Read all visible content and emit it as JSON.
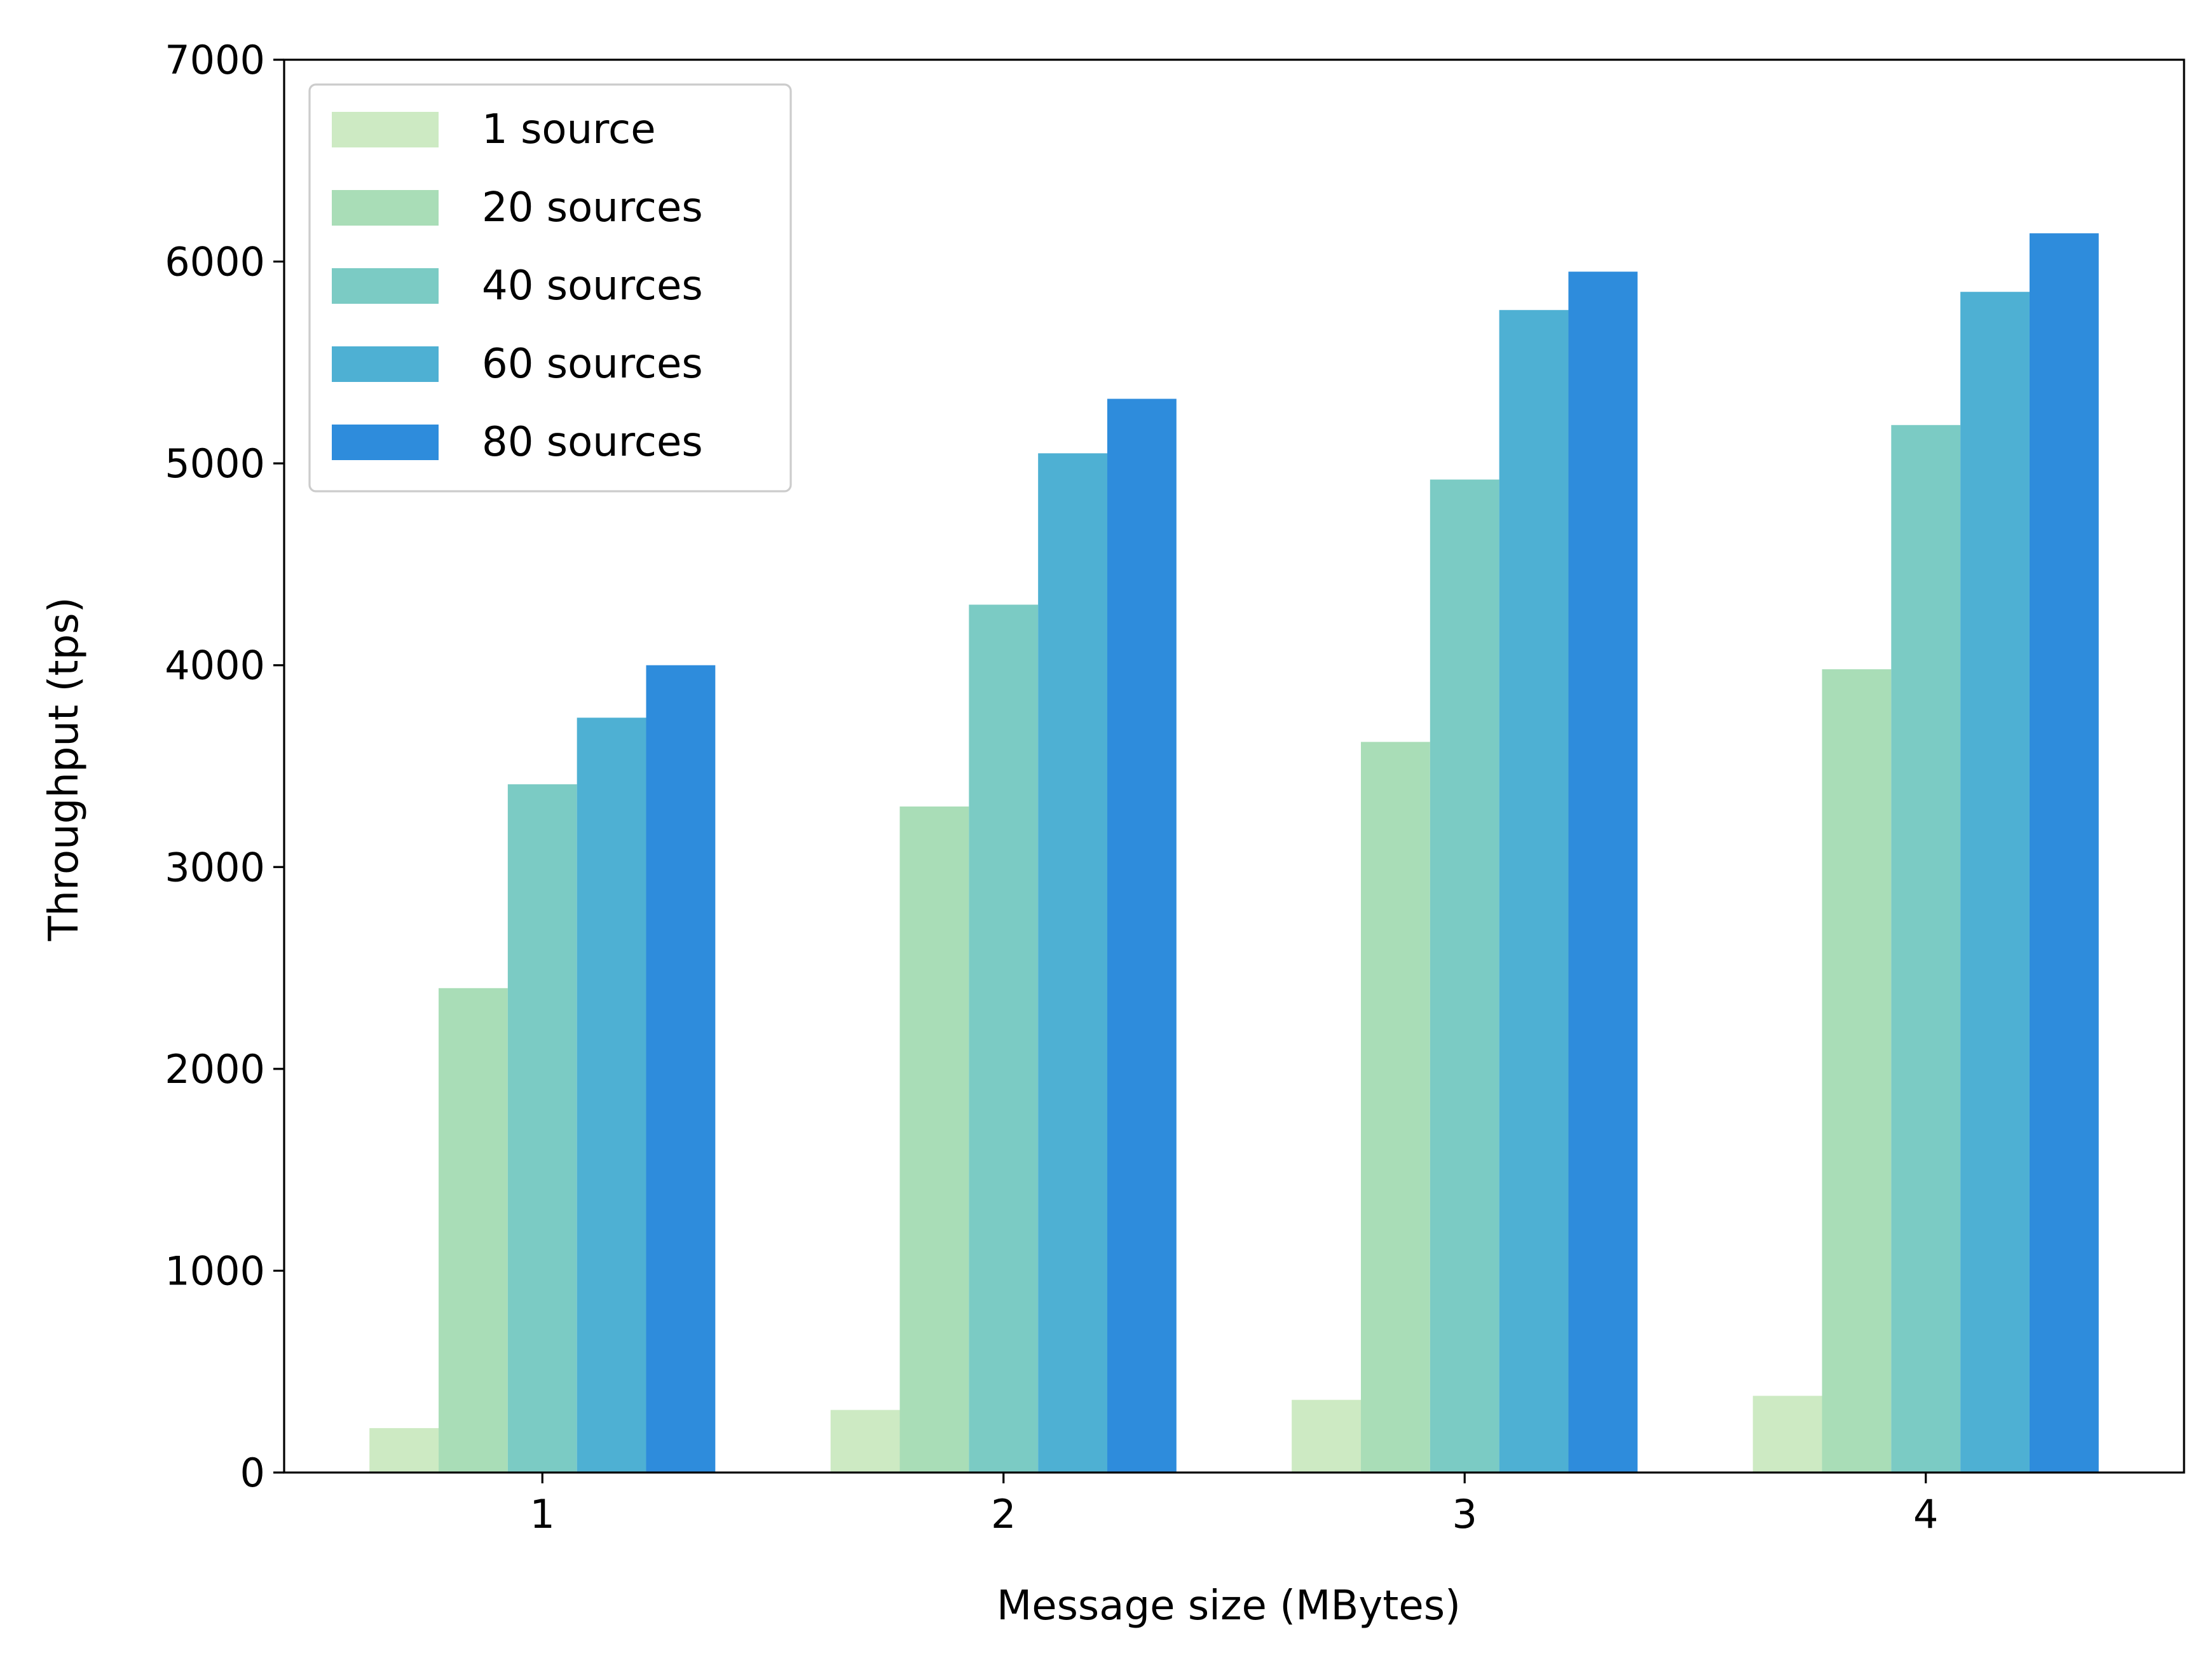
{
  "chart_data": {
    "type": "bar",
    "title": "",
    "xlabel": "Message size (MBytes)",
    "ylabel": "Throughput (tps)",
    "categories": [
      "1",
      "2",
      "3",
      "4"
    ],
    "ylim": [
      0,
      7000
    ],
    "yticks": [
      "0",
      "1000",
      "2000",
      "3000",
      "4000",
      "5000",
      "6000",
      "7000"
    ],
    "grid": false,
    "legend_position": "top-left",
    "series": [
      {
        "name": "1 source",
        "color": "#cdeac3",
        "values": [
          220,
          310,
          360,
          380
        ]
      },
      {
        "name": "20 sources",
        "color": "#a9ddb7",
        "values": [
          2400,
          3300,
          3620,
          3980
        ]
      },
      {
        "name": "40 sources",
        "color": "#7bcbc4",
        "values": [
          3410,
          4300,
          4920,
          5190
        ]
      },
      {
        "name": "60 sources",
        "color": "#4eb0d3",
        "values": [
          3740,
          5050,
          5760,
          5850
        ]
      },
      {
        "name": "80 sources",
        "color": "#2e8cdc",
        "values": [
          4000,
          5320,
          5950,
          6140
        ]
      }
    ]
  }
}
